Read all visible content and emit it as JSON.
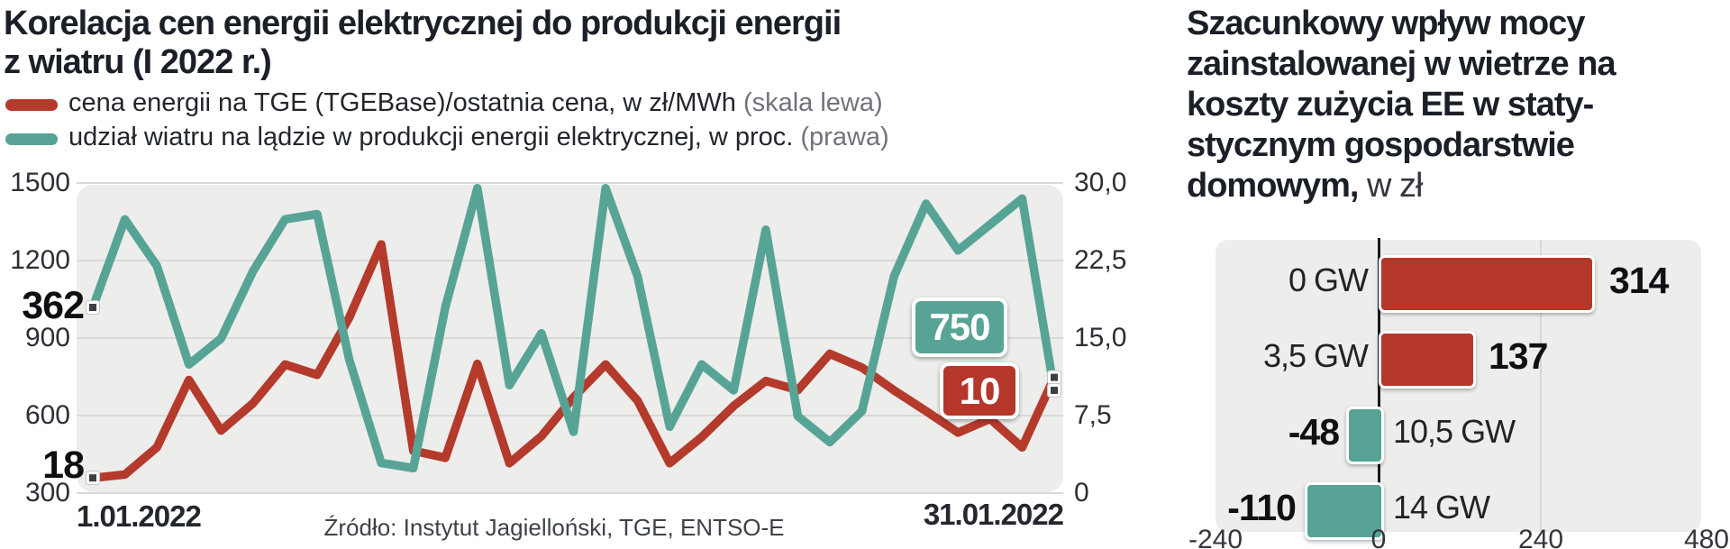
{
  "accent_colors": {
    "red": "#b5372a",
    "teal": "#57a497"
  },
  "left_panel": {
    "title_line1": "Korelacja cen energii elektrycznej do produkcji energii",
    "title_line2": "z wiatru (I 2022 r.)",
    "legend": [
      {
        "text": "cena energii na TGE (TGEBase)/ostatnia cena, w zł/MWh",
        "suffix": " (skala lewa)",
        "color": "#b43a2c"
      },
      {
        "text": "udział wiatru na lądzie w produkcji energii elektrycznej, w proc.",
        "suffix": " (prawa)",
        "color": "#57a497"
      }
    ],
    "start_annotations": {
      "price": "362",
      "share": "18"
    },
    "end_boxes": {
      "price": "750",
      "share": "10"
    },
    "x_start_label": "1.01.2022",
    "x_end_label": "31.01.2022",
    "source": "Źródło: Instytut Jagielloński, TGE, ENTSO-E"
  },
  "right_panel": {
    "title_line1": "Szacunkowy wpływ mocy",
    "title_line2": "zainstalowanej w  wietrze na",
    "title_line3": "koszty zużycia EE w staty-",
    "title_line4": "stycznym gospodarstwie",
    "title_line5_bold": "domowym,",
    "title_line5_suffix": " w zł"
  },
  "chart_data": [
    {
      "type": "line",
      "title": "Korelacja cen energii elektrycznej do produkcji energii z wiatru (I 2022 r.)",
      "x_label_start": "1.01.2022",
      "x_label_end": "31.01.2022",
      "x": [
        1,
        2,
        3,
        4,
        5,
        6,
        7,
        8,
        9,
        10,
        11,
        12,
        13,
        14,
        15,
        16,
        17,
        18,
        19,
        20,
        21,
        22,
        23,
        24,
        25,
        26,
        27,
        28,
        29,
        30,
        31
      ],
      "left_axis": {
        "range": [
          300,
          1500
        ],
        "ticks": [
          "1500",
          "1200",
          "900",
          "600",
          "300"
        ],
        "unit": "zł/MWh"
      },
      "right_axis": {
        "range": [
          0,
          30
        ],
        "ticks": [
          "30,0",
          "22,5",
          "15,0",
          "7,5",
          "0"
        ],
        "unit": "proc."
      },
      "grid": true,
      "legend_position": "top",
      "series": [
        {
          "name": "cena energii na TGE (TGEBase)/ostatnia cena, w zł/MWh (skala lewa)",
          "axis": "left",
          "color": "#b43a2c",
          "start_value_label": "362",
          "end_value_label": "750",
          "values": [
            362,
            375,
            480,
            740,
            545,
            650,
            800,
            760,
            980,
            1263,
            467,
            440,
            802,
            419,
            523,
            673,
            800,
            660,
            419,
            520,
            640,
            736,
            701,
            841,
            788,
            700,
            620,
            537,
            590,
            480,
            750
          ]
        },
        {
          "name": "udział wiatru na lądzie w produkcji energii elektrycznej, w proc. (prawa)",
          "axis": "right",
          "color": "#57a497",
          "start_value_label": "18",
          "end_value_label": "10",
          "values": [
            18,
            26.5,
            22,
            12.5,
            15,
            21.5,
            26.5,
            27,
            13,
            3,
            2.5,
            18,
            29.5,
            10.5,
            15.5,
            6,
            29.5,
            21,
            6.5,
            12.5,
            10,
            25.5,
            7.5,
            5,
            8,
            21,
            28,
            23.5,
            26,
            28.5,
            10
          ]
        }
      ],
      "end_value_boxes": [
        {
          "text": "750",
          "bg": "#57a497"
        },
        {
          "text": "10",
          "bg": "#b5372a"
        }
      ],
      "source": "Źródło: Instytut Jagielloński, TGE, ENTSO-E"
    },
    {
      "type": "bar",
      "title": "Szacunkowy wpływ mocy zainstalowanej w wietrze na koszty zużycia EE w statystycznym gospodarstwie domowym, w zł",
      "categories": [
        "0 GW",
        "3,5 GW",
        "10,5 GW",
        "14 GW"
      ],
      "values": [
        314,
        137,
        -48,
        -110
      ],
      "value_labels": [
        "314",
        "137",
        "-48",
        "-110"
      ],
      "bar_colors": [
        "#b5372a",
        "#b5372a",
        "#57a497",
        "#57a497"
      ],
      "xlim": [
        -240,
        480
      ],
      "x_ticks": [
        "-240",
        "0",
        "240",
        "480"
      ],
      "grid": true,
      "orientation": "horizontal"
    }
  ]
}
